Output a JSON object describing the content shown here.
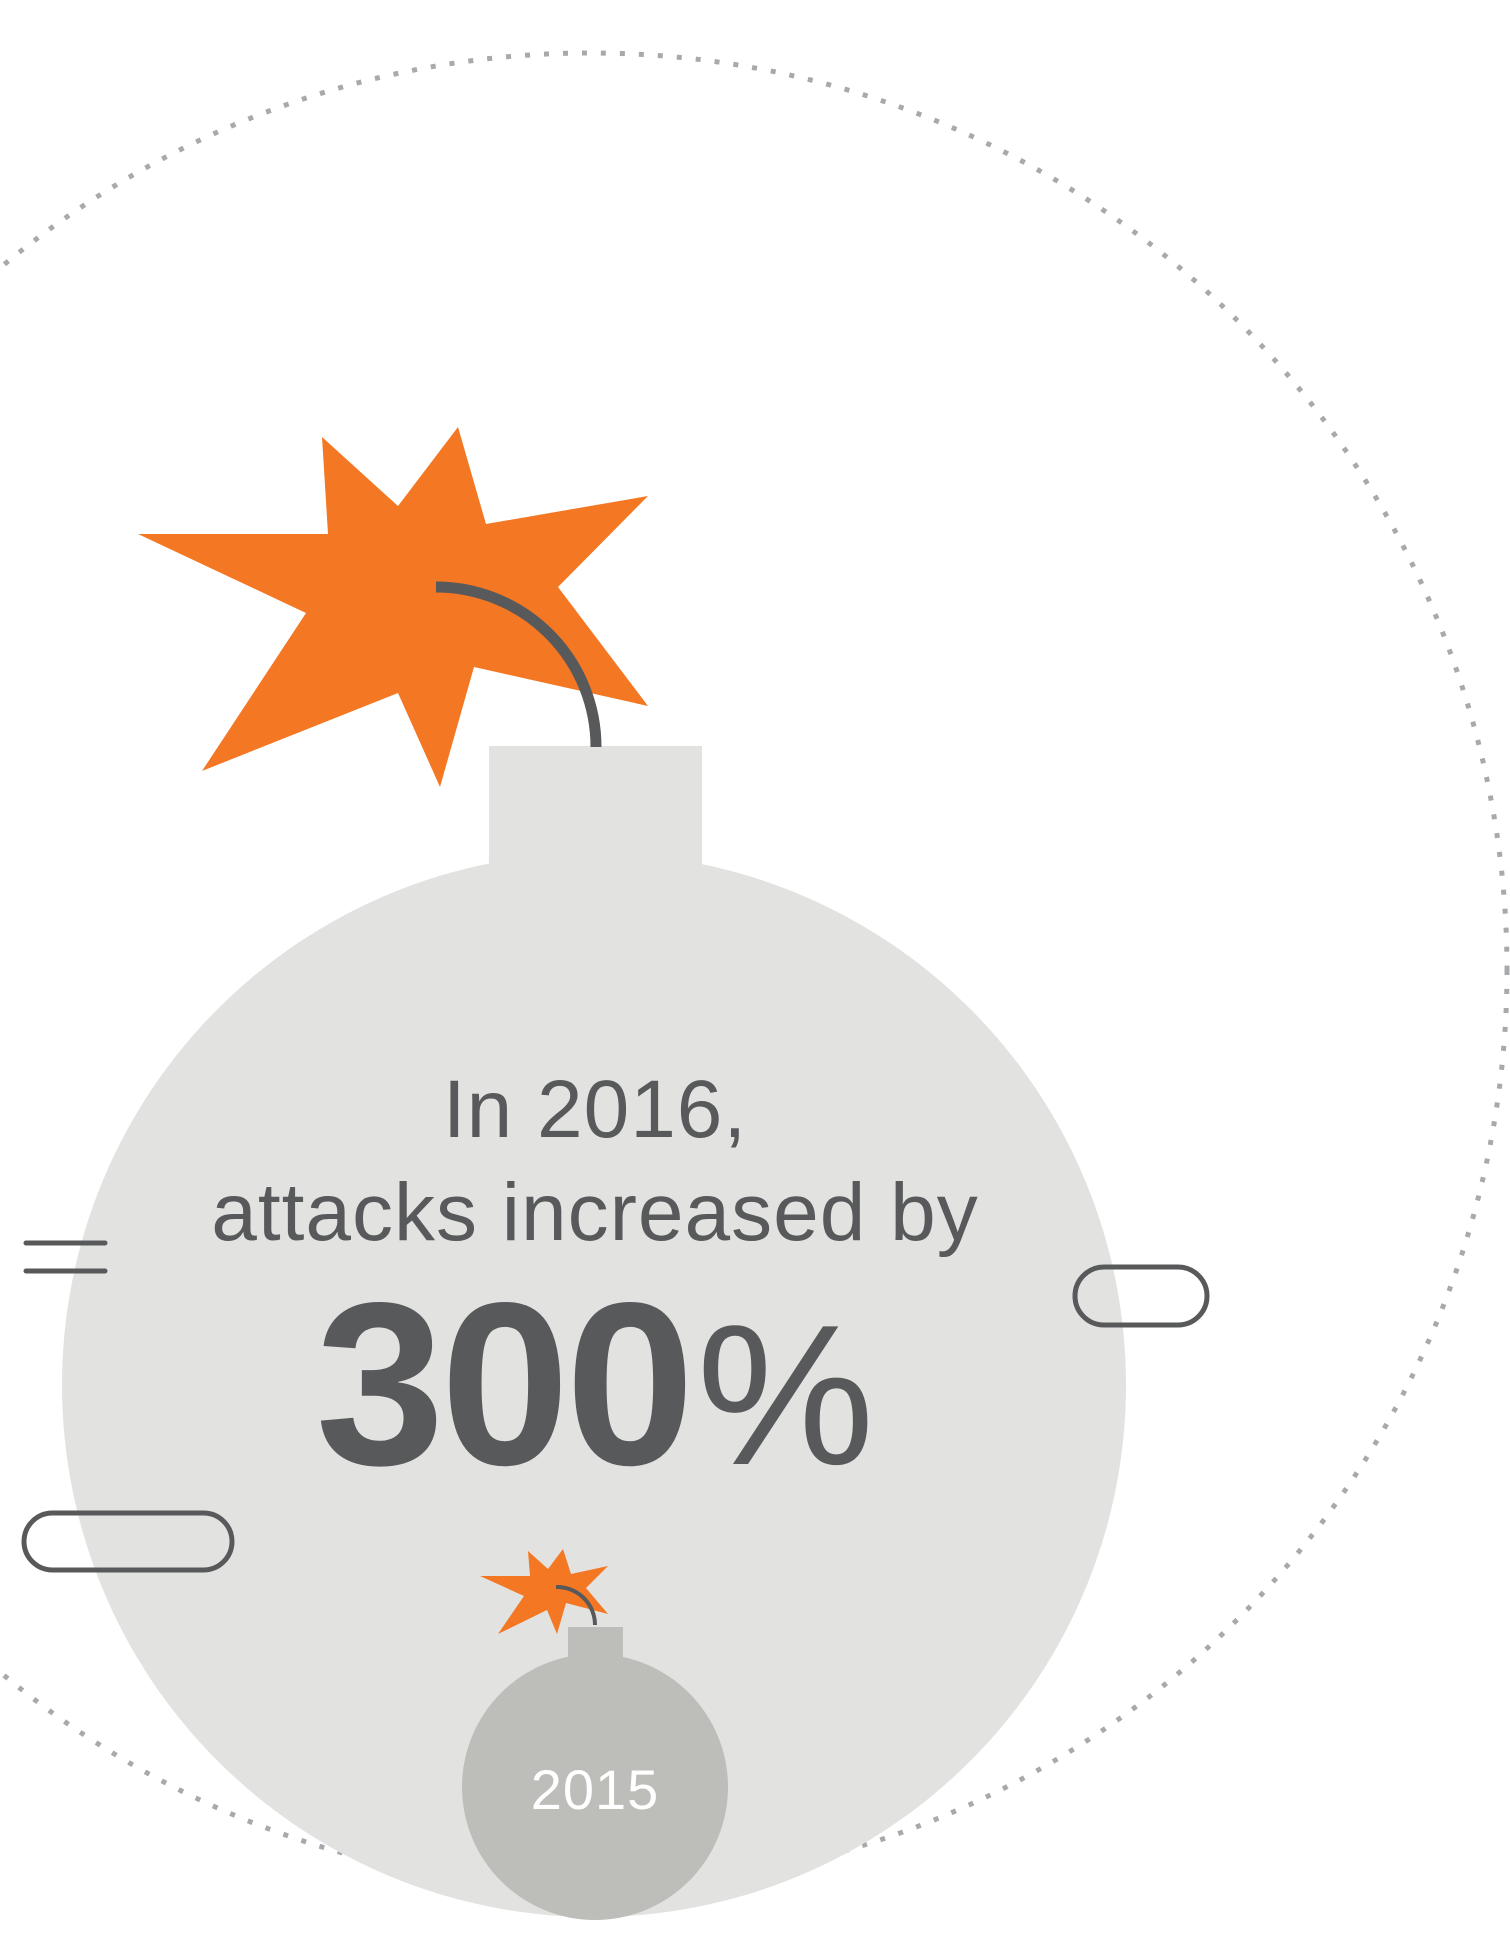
{
  "infographic": {
    "line1": "In 2016,",
    "line2": "attacks increased by",
    "stat_number": "300",
    "stat_unit": "%",
    "small_bomb_label": "2015",
    "increase_percent": 300
  },
  "colors": {
    "orange": "#f47723",
    "dark_gray": "#58595b",
    "big_bomb": "#e2e2e1",
    "small_bomb": "#bdbeb9",
    "dotted_circle": "#a7a9ac"
  },
  "icons": [
    "explosion-icon",
    "bomb-icon",
    "fuse-icon",
    "speed-line-icon"
  ]
}
